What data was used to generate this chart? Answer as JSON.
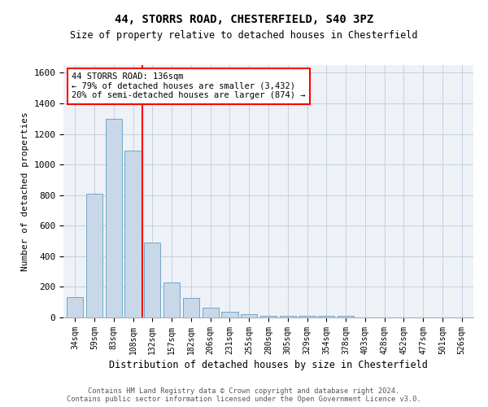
{
  "title_line1": "44, STORRS ROAD, CHESTERFIELD, S40 3PZ",
  "title_line2": "Size of property relative to detached houses in Chesterfield",
  "xlabel": "Distribution of detached houses by size in Chesterfield",
  "ylabel": "Number of detached properties",
  "categories": [
    "34sqm",
    "59sqm",
    "83sqm",
    "108sqm",
    "132sqm",
    "157sqm",
    "182sqm",
    "206sqm",
    "231sqm",
    "255sqm",
    "280sqm",
    "305sqm",
    "329sqm",
    "354sqm",
    "378sqm",
    "403sqm",
    "428sqm",
    "452sqm",
    "477sqm",
    "501sqm",
    "526sqm"
  ],
  "values": [
    135,
    810,
    1300,
    1090,
    490,
    230,
    130,
    65,
    35,
    22,
    12,
    10,
    10,
    10,
    10,
    0,
    0,
    0,
    0,
    0,
    0
  ],
  "bar_color": "#c8d8e8",
  "bar_edge_color": "#6fa8c8",
  "red_line_x": 3.5,
  "annotation_text": "44 STORRS ROAD: 136sqm\n← 79% of detached houses are smaller (3,432)\n20% of semi-detached houses are larger (874) →",
  "annotation_box_color": "white",
  "annotation_box_edge": "red",
  "red_line_color": "red",
  "ylim": [
    0,
    1650
  ],
  "yticks": [
    0,
    200,
    400,
    600,
    800,
    1000,
    1200,
    1400,
    1600
  ],
  "footer_line1": "Contains HM Land Registry data © Crown copyright and database right 2024.",
  "footer_line2": "Contains public sector information licensed under the Open Government Licence v3.0.",
  "bg_color": "#eef2f7",
  "grid_color": "#c5cfe0"
}
